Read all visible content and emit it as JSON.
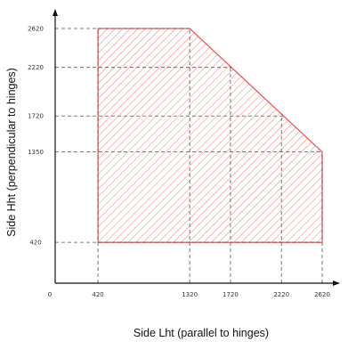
{
  "chart_data": {
    "type": "area",
    "title": "",
    "xlabel": "Side Lht (parallel to hinges)",
    "ylabel": "Side Hht (perpendicular to hinges)",
    "xlim": [
      0,
      2620
    ],
    "ylim": [
      0,
      2620
    ],
    "origin_label": "0",
    "x_ticks": [
      420,
      1320,
      1720,
      2220,
      2620
    ],
    "y_ticks": [
      420,
      1350,
      1720,
      2220,
      2620
    ],
    "x_tick_labels": [
      "420",
      "1320",
      "1720",
      "2220",
      "2620"
    ],
    "y_tick_labels": [
      "420",
      "1350",
      "1720",
      "2220",
      "2620"
    ],
    "series": [
      {
        "x": [
          420,
          1320,
          2620,
          2620,
          420
        ],
        "y": [
          2620,
          2620,
          1350,
          420,
          420
        ]
      }
    ],
    "fill": "hatched",
    "colors": {
      "region": "#f05a5a",
      "guides": "#555555",
      "axes": "#111111"
    },
    "grid": false,
    "legend": "none"
  }
}
